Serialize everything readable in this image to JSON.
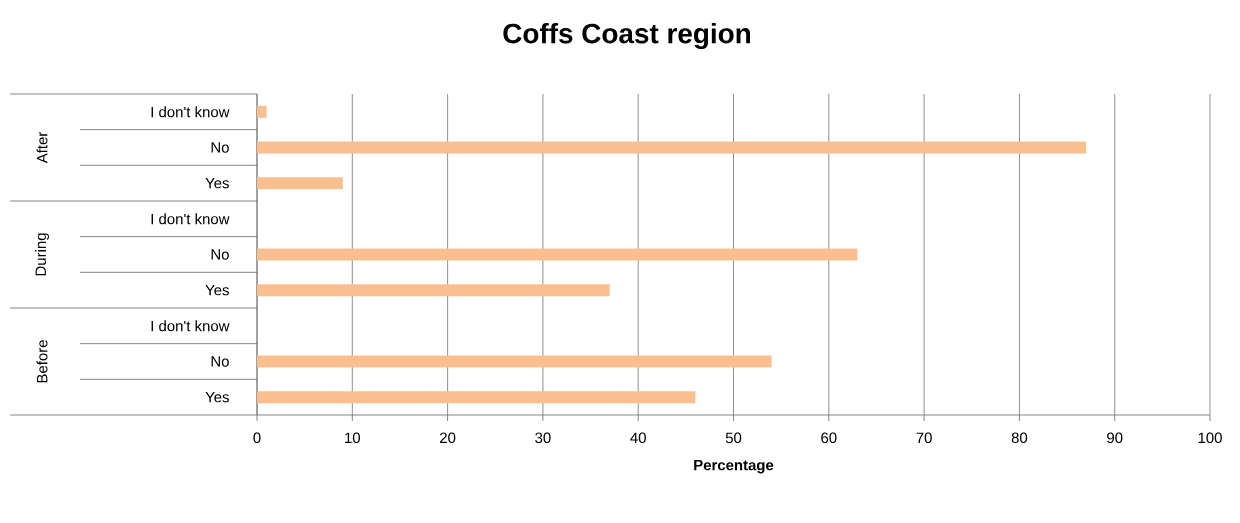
{
  "chart_data": {
    "type": "bar",
    "orientation": "horizontal",
    "title": "Coffs Coast region",
    "xlabel": "Percentage",
    "categories": [
      "I don't know",
      "No",
      "Yes",
      "I don't know",
      "No",
      "Yes",
      "I don't know",
      "No",
      "Yes"
    ],
    "values": [
      1,
      87,
      9,
      0,
      63,
      37,
      0,
      54,
      46
    ],
    "color": "#f9bf8f",
    "annotations": [
      "After",
      "During",
      "Before"
    ],
    "xlim": [
      0,
      100
    ],
    "xticks": [
      0,
      10,
      20,
      30,
      40,
      50,
      60,
      70,
      80,
      90,
      100
    ],
    "grid": "x"
  }
}
